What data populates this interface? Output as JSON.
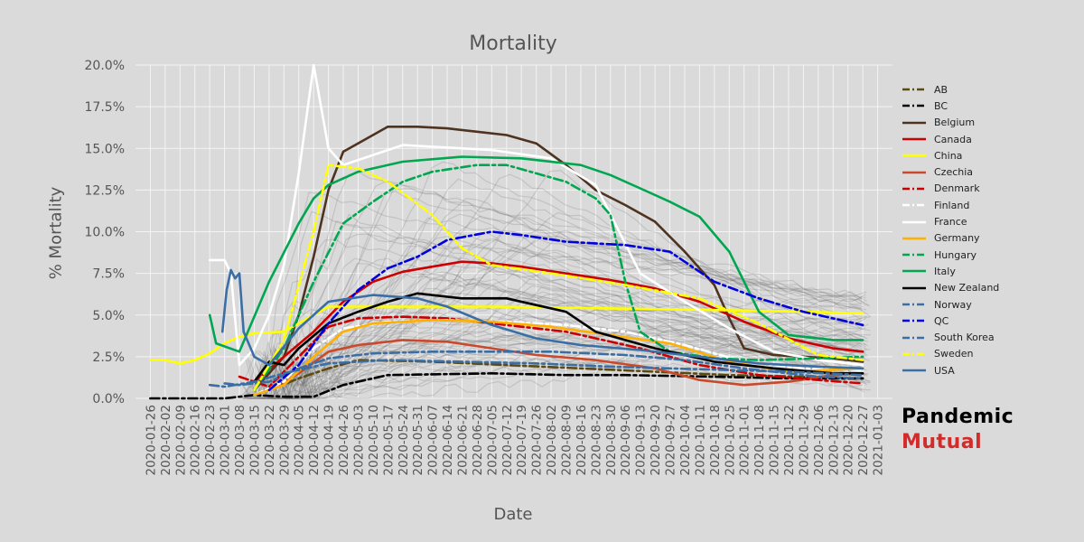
{
  "chart_data": {
    "type": "line",
    "title": "Mortality",
    "xlabel": "Date",
    "ylabel": "% Mortality",
    "ylim": [
      0,
      20
    ],
    "yticks": [
      "0.0%",
      "2.5%",
      "5.0%",
      "7.5%",
      "10.0%",
      "12.5%",
      "15.0%",
      "17.5%",
      "20.0%"
    ],
    "x_ticks": [
      "2020-01-26",
      "2020-02-02",
      "2020-02-09",
      "2020-02-16",
      "2020-02-23",
      "2020-03-01",
      "2020-03-08",
      "2020-03-15",
      "2020-03-22",
      "2020-03-29",
      "2020-04-05",
      "2020-04-12",
      "2020-04-19",
      "2020-04-26",
      "2020-05-03",
      "2020-05-10",
      "2020-05-17",
      "2020-05-24",
      "2020-05-31",
      "2020-06-07",
      "2020-06-14",
      "2020-06-21",
      "2020-06-28",
      "2020-07-05",
      "2020-07-12",
      "2020-07-19",
      "2020-07-26",
      "2020-08-02",
      "2020-08-09",
      "2020-08-16",
      "2020-08-23",
      "2020-08-30",
      "2020-09-06",
      "2020-09-13",
      "2020-09-20",
      "2020-09-27",
      "2020-10-04",
      "2020-10-11",
      "2020-10-18",
      "2020-10-25",
      "2020-11-01",
      "2020-11-08",
      "2020-11-15",
      "2020-11-22",
      "2020-11-29",
      "2020-12-06",
      "2020-12-13",
      "2020-12-20",
      "2020-12-27",
      "2021-01-03"
    ],
    "grid": true,
    "legend_position": "right",
    "background_lines": "many faint grey lines for other countries",
    "series": [
      {
        "name": "AB",
        "color": "#5c4a12",
        "dash": "dashdot",
        "x": [
          "2020-03-22",
          "2020-04-05",
          "2020-04-19",
          "2020-05-03",
          "2020-06-07",
          "2020-07-12",
          "2020-08-16",
          "2020-09-20",
          "2020-10-25",
          "2020-11-29",
          "2020-12-27"
        ],
        "y": [
          0.5,
          1.2,
          1.8,
          2.3,
          2.2,
          2.0,
          1.8,
          1.6,
          1.4,
          1.3,
          1.2
        ]
      },
      {
        "name": "BC",
        "color": "#000000",
        "dash": "dashdot",
        "x": [
          "2020-01-26",
          "2020-03-01",
          "2020-03-15",
          "2020-03-29",
          "2020-04-12",
          "2020-04-26",
          "2020-05-17",
          "2020-07-05",
          "2020-08-09",
          "2020-09-06",
          "2020-10-18",
          "2020-11-22",
          "2020-12-27"
        ],
        "y": [
          0.0,
          0.0,
          0.2,
          0.1,
          0.1,
          0.8,
          1.4,
          1.5,
          1.4,
          1.4,
          1.3,
          1.2,
          1.2
        ]
      },
      {
        "name": "Belgium",
        "color": "#4d3320",
        "dash": "solid",
        "x": [
          "2020-03-15",
          "2020-03-29",
          "2020-04-05",
          "2020-04-12",
          "2020-04-19",
          "2020-04-26",
          "2020-05-10",
          "2020-05-17",
          "2020-05-31",
          "2020-06-14",
          "2020-06-28",
          "2020-07-12",
          "2020-07-26",
          "2020-08-09",
          "2020-08-23",
          "2020-09-06",
          "2020-09-20",
          "2020-10-04",
          "2020-10-18",
          "2020-10-25",
          "2020-11-01",
          "2020-11-15",
          "2020-11-29",
          "2020-12-13",
          "2020-12-27"
        ],
        "y": [
          0.5,
          2.5,
          5.0,
          8.5,
          12.5,
          14.8,
          15.8,
          16.3,
          16.3,
          16.2,
          16.0,
          15.8,
          15.3,
          14.0,
          12.5,
          11.6,
          10.6,
          8.8,
          6.8,
          4.8,
          3.0,
          2.6,
          2.5,
          2.4,
          2.2
        ]
      },
      {
        "name": "Canada",
        "color": "#cc0000",
        "dash": "solid",
        "x": [
          "2020-03-15",
          "2020-03-29",
          "2020-04-12",
          "2020-04-26",
          "2020-05-10",
          "2020-05-24",
          "2020-06-07",
          "2020-06-21",
          "2020-07-05",
          "2020-07-19",
          "2020-08-09",
          "2020-08-30",
          "2020-09-20",
          "2020-10-11",
          "2020-11-01",
          "2020-11-22",
          "2020-12-13",
          "2020-12-27"
        ],
        "y": [
          1.0,
          2.5,
          4.0,
          5.8,
          7.0,
          7.6,
          7.9,
          8.2,
          8.1,
          7.9,
          7.5,
          7.1,
          6.6,
          5.8,
          4.6,
          3.6,
          3.0,
          2.8
        ]
      },
      {
        "name": "China",
        "color": "#ffff00",
        "dash": "solid",
        "x": [
          "2020-01-26",
          "2020-02-02",
          "2020-02-09",
          "2020-02-16",
          "2020-02-23",
          "2020-03-01",
          "2020-03-08",
          "2020-03-15",
          "2020-03-29",
          "2020-04-19",
          "2020-05-17",
          "2020-07-05",
          "2020-08-30",
          "2020-10-18",
          "2020-11-29",
          "2020-12-27"
        ],
        "y": [
          2.3,
          2.3,
          2.1,
          2.3,
          2.7,
          3.3,
          3.7,
          3.9,
          4.0,
          5.5,
          5.5,
          5.5,
          5.4,
          5.3,
          5.2,
          5.1
        ]
      },
      {
        "name": "Czechia",
        "color": "#c94a2b",
        "dash": "solid",
        "x": [
          "2020-03-22",
          "2020-04-05",
          "2020-04-19",
          "2020-05-03",
          "2020-05-24",
          "2020-06-14",
          "2020-07-05",
          "2020-07-26",
          "2020-08-23",
          "2020-09-20",
          "2020-10-11",
          "2020-11-01",
          "2020-11-22",
          "2020-12-13",
          "2020-12-27"
        ],
        "y": [
          0.5,
          1.5,
          2.8,
          3.2,
          3.5,
          3.4,
          3.0,
          2.6,
          2.3,
          1.8,
          1.1,
          0.8,
          1.0,
          1.4,
          1.5
        ]
      },
      {
        "name": "Denmark",
        "color": "#cc0000",
        "dash": "dashdot",
        "x": [
          "2020-03-08",
          "2020-03-22",
          "2020-04-05",
          "2020-04-19",
          "2020-05-03",
          "2020-05-24",
          "2020-06-14",
          "2020-07-05",
          "2020-08-09",
          "2020-09-13",
          "2020-10-11",
          "2020-11-08",
          "2020-12-06",
          "2020-12-27"
        ],
        "y": [
          1.3,
          0.7,
          2.5,
          4.3,
          4.8,
          4.9,
          4.8,
          4.5,
          4.0,
          3.0,
          2.0,
          1.4,
          1.1,
          0.9
        ]
      },
      {
        "name": "Finland",
        "color": "#ffffff",
        "dash": "dashdot",
        "x": [
          "2020-03-15",
          "2020-03-29",
          "2020-04-12",
          "2020-04-26",
          "2020-05-17",
          "2020-06-14",
          "2020-07-12",
          "2020-08-09",
          "2020-09-06",
          "2020-10-04",
          "2020-11-01",
          "2020-11-29",
          "2020-12-27"
        ],
        "y": [
          0.2,
          1.0,
          3.0,
          4.2,
          4.6,
          4.7,
          4.6,
          4.4,
          4.0,
          3.2,
          2.2,
          1.8,
          1.7
        ]
      },
      {
        "name": "France",
        "color": "#ffffff",
        "dash": "solid",
        "x": [
          "2020-02-23",
          "2020-03-01",
          "2020-03-04",
          "2020-03-08",
          "2020-03-15",
          "2020-03-22",
          "2020-03-29",
          "2020-04-05",
          "2020-04-12",
          "2020-04-19",
          "2020-04-26",
          "2020-05-10",
          "2020-05-24",
          "2020-06-07",
          "2020-07-05",
          "2020-08-02",
          "2020-08-23",
          "2020-09-13",
          "2020-10-04",
          "2020-10-25",
          "2020-11-15",
          "2020-12-06",
          "2020-12-27"
        ],
        "y": [
          8.3,
          8.3,
          7.5,
          2.0,
          3.0,
          5.0,
          8.0,
          13.5,
          20.0,
          15.0,
          14.0,
          14.6,
          15.2,
          15.1,
          14.9,
          14.4,
          12.8,
          7.5,
          5.8,
          4.2,
          2.8,
          2.3,
          2.0
        ]
      },
      {
        "name": "Germany",
        "color": "#ffb000",
        "dash": "solid",
        "x": [
          "2020-03-15",
          "2020-03-29",
          "2020-04-12",
          "2020-04-26",
          "2020-05-10",
          "2020-06-07",
          "2020-07-05",
          "2020-08-02",
          "2020-08-30",
          "2020-09-27",
          "2020-10-25",
          "2020-11-22",
          "2020-12-27"
        ],
        "y": [
          0.2,
          0.8,
          2.5,
          4.0,
          4.5,
          4.7,
          4.6,
          4.3,
          3.8,
          3.3,
          2.2,
          1.6,
          1.8
        ]
      },
      {
        "name": "Hungary",
        "color": "#00a650",
        "dash": "dashdot",
        "x": [
          "2020-03-15",
          "2020-03-29",
          "2020-04-12",
          "2020-04-26",
          "2020-05-10",
          "2020-05-24",
          "2020-06-07",
          "2020-06-28",
          "2020-07-12",
          "2020-07-26",
          "2020-08-09",
          "2020-08-23",
          "2020-08-30",
          "2020-09-06",
          "2020-09-13",
          "2020-09-27",
          "2020-10-18",
          "2020-11-08",
          "2020-12-06",
          "2020-12-27"
        ],
        "y": [
          0.5,
          3.0,
          7.0,
          10.5,
          11.8,
          13.0,
          13.6,
          14.0,
          14.0,
          13.5,
          13.0,
          12.0,
          11.0,
          7.0,
          4.0,
          2.8,
          2.4,
          2.3,
          2.4,
          2.5
        ]
      },
      {
        "name": "Italy",
        "color": "#00a650",
        "dash": "solid",
        "x": [
          "2020-02-23",
          "2020-02-26",
          "2020-03-08",
          "2020-03-22",
          "2020-04-05",
          "2020-04-12",
          "2020-04-19",
          "2020-05-03",
          "2020-05-24",
          "2020-06-21",
          "2020-07-19",
          "2020-08-16",
          "2020-08-30",
          "2020-09-13",
          "2020-09-27",
          "2020-10-11",
          "2020-10-25",
          "2020-11-08",
          "2020-11-22",
          "2020-12-13",
          "2020-12-27"
        ],
        "y": [
          5.0,
          3.3,
          2.8,
          7.0,
          10.5,
          12.0,
          12.8,
          13.6,
          14.2,
          14.5,
          14.4,
          14.0,
          13.4,
          12.6,
          11.8,
          10.9,
          8.8,
          5.2,
          3.8,
          3.5,
          3.5
        ]
      },
      {
        "name": "New Zealand",
        "color": "#000000",
        "dash": "solid",
        "x": [
          "2020-03-15",
          "2020-03-22",
          "2020-03-29",
          "2020-04-05",
          "2020-04-19",
          "2020-05-03",
          "2020-05-17",
          "2020-05-31",
          "2020-06-21",
          "2020-07-12",
          "2020-07-26",
          "2020-08-09",
          "2020-08-23",
          "2020-09-20",
          "2020-10-18",
          "2020-11-15",
          "2020-12-13",
          "2020-12-27"
        ],
        "y": [
          1.0,
          2.2,
          2.0,
          3.0,
          4.5,
          5.2,
          5.8,
          6.3,
          6.0,
          6.0,
          5.6,
          5.2,
          4.0,
          3.0,
          2.2,
          1.8,
          1.5,
          1.5
        ]
      },
      {
        "name": "Norway",
        "color": "#3a6ea5",
        "dash": "dashdot",
        "x": [
          "2020-03-01",
          "2020-03-08",
          "2020-03-22",
          "2020-04-05",
          "2020-04-19",
          "2020-05-10",
          "2020-06-07",
          "2020-07-05",
          "2020-08-02",
          "2020-09-06",
          "2020-10-04",
          "2020-11-01",
          "2020-12-06",
          "2020-12-27"
        ],
        "y": [
          0.9,
          0.8,
          1.0,
          1.8,
          2.4,
          2.7,
          2.8,
          2.8,
          2.8,
          2.6,
          2.3,
          1.8,
          1.3,
          1.2
        ]
      },
      {
        "name": "QC",
        "color": "#0000dd",
        "dash": "dashdot",
        "x": [
          "2020-03-22",
          "2020-04-05",
          "2020-04-19",
          "2020-05-03",
          "2020-05-17",
          "2020-05-31",
          "2020-06-14",
          "2020-07-05",
          "2020-07-19",
          "2020-08-09",
          "2020-09-06",
          "2020-09-27",
          "2020-10-18",
          "2020-11-08",
          "2020-11-29",
          "2020-12-27"
        ],
        "y": [
          0.5,
          2.0,
          4.5,
          6.5,
          7.8,
          8.5,
          9.5,
          10.0,
          9.8,
          9.4,
          9.2,
          8.8,
          7.0,
          6.0,
          5.2,
          4.4
        ]
      },
      {
        "name": "South Korea",
        "color": "#3a6ea5",
        "dash": "dashdot",
        "x": [
          "2020-02-23",
          "2020-03-01",
          "2020-03-15",
          "2020-03-29",
          "2020-04-19",
          "2020-05-17",
          "2020-06-21",
          "2020-07-26",
          "2020-08-30",
          "2020-09-27",
          "2020-10-25",
          "2020-11-22",
          "2020-12-27"
        ],
        "y": [
          0.8,
          0.7,
          1.0,
          1.5,
          2.1,
          2.3,
          2.2,
          2.1,
          1.9,
          1.8,
          1.7,
          1.6,
          1.4
        ]
      },
      {
        "name": "Sweden",
        "color": "#ffff00",
        "dash": "dashdot",
        "x": [
          "2020-03-15",
          "2020-03-29",
          "2020-04-12",
          "2020-04-19",
          "2020-05-03",
          "2020-05-17",
          "2020-06-07",
          "2020-06-21",
          "2020-07-05",
          "2020-08-02",
          "2020-09-06",
          "2020-10-11",
          "2020-11-08",
          "2020-12-06",
          "2020-12-27"
        ],
        "y": [
          0.5,
          3.5,
          10.0,
          14.0,
          13.8,
          13.0,
          11.0,
          9.0,
          8.0,
          7.5,
          6.8,
          6.0,
          4.5,
          2.6,
          2.3
        ]
      },
      {
        "name": "USA",
        "color": "#3a6ea5",
        "dash": "solid",
        "x": [
          "2020-02-29",
          "2020-03-02",
          "2020-03-04",
          "2020-03-06",
          "2020-03-08",
          "2020-03-10",
          "2020-03-15",
          "2020-03-22",
          "2020-04-05",
          "2020-04-19",
          "2020-05-10",
          "2020-05-31",
          "2020-06-14",
          "2020-07-05",
          "2020-07-26",
          "2020-08-16",
          "2020-09-13",
          "2020-10-11",
          "2020-11-08",
          "2020-12-06",
          "2020-12-27"
        ],
        "y": [
          4.0,
          6.5,
          7.7,
          7.2,
          7.5,
          4.0,
          2.5,
          2.0,
          4.2,
          5.8,
          6.2,
          6.0,
          5.5,
          4.4,
          3.6,
          3.2,
          2.9,
          2.5,
          2.1,
          1.9,
          1.8
        ]
      }
    ]
  },
  "branding": {
    "line1": "Pandemic",
    "line2": "Mutual"
  }
}
